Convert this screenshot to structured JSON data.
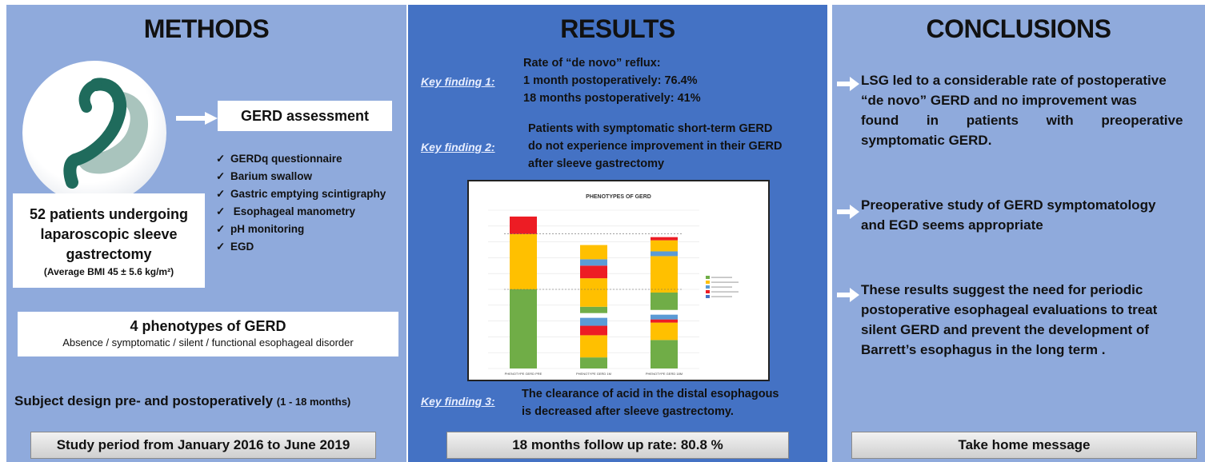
{
  "methods": {
    "title": "METHODS",
    "gerd_assessment": "GERD assessment",
    "checklist": [
      "GERDq questionnaire",
      "Barium swallow",
      "Gastric emptying scintigraphy",
      " Esophageal manometry",
      "pH monitoring",
      "EGD"
    ],
    "check_glyph": "✓",
    "patients_line1": "52 patients undergoing",
    "patients_line2": "laparoscopic sleeve",
    "patients_line3": "gastrectomy",
    "bmi_text": "(Average BMI 45 ± 5.6 kg/m²)",
    "phenotypes_title": "4 phenotypes of GERD",
    "phenotypes_sub": "Absence / symptomatic / silent / functional esophageal disorder",
    "design_main": "Subject design pre- and postoperatively ",
    "design_range": "(1 - 18 months)",
    "study_period": "Study period from January 2016 to June 2019",
    "colors": {
      "panel": "#8faadc",
      "logo_dark": "#1f6b5c",
      "logo_light": "#a9c4bd"
    }
  },
  "results": {
    "title": "RESULTS",
    "key_findings": [
      {
        "label": "Key finding 1:",
        "lines": [
          "Rate of “de novo” reflux:",
          "1 month postoperatively: 76.4%",
          "18 months postoperatively: 41%"
        ]
      },
      {
        "label": "Key finding 2:",
        "lines": [
          "Patients with symptomatic short-term GERD",
          "do not experience improvement in their GERD",
          "after sleeve gastrectomy"
        ]
      },
      {
        "label": "Key finding 3:",
        "lines": [
          "The clearance of acid in the distal esophagous",
          "is decreased after sleeve gastrectomy."
        ]
      }
    ],
    "follow_up": "18 months follow up rate: 80.8 %",
    "colors": {
      "panel": "#4472c4"
    }
  },
  "conclusions": {
    "title": "CONCLUSIONS",
    "items": [
      [
        "LSG led to a considerable rate of postoperative",
        "“de novo” GERD and no improvement was",
        "found in patients with preoperative",
        "symptomatic GERD."
      ],
      [
        "Preoperative study of GERD symptomatology",
        "and EGD seems appropriate"
      ],
      [
        "These results suggest the need for periodic",
        "postoperative esophageal evaluations to treat",
        "silent GERD and prevent the development of",
        "Barrett’s esophagus in the long term ."
      ]
    ],
    "take_home": "Take home message"
  },
  "chart_data": {
    "type": "bar",
    "stacked": true,
    "title": "PHENOTYPES OF GERD",
    "categories": [
      "PHENOTYPE GERD PRE",
      "PHENOTYPE GERD 1M",
      "PHENOTYPE GERD 18M"
    ],
    "groups": [
      {
        "category": "PHENOTYPE GERD PRE",
        "bars": [
          {
            "segments": [
              [
                "#70ad47",
                100
              ],
              [
                "#ffc000",
                70
              ],
              [
                "#ed1c24",
                22
              ]
            ]
          }
        ]
      },
      {
        "category": "PHENOTYPE GERD 1M",
        "bars": [
          {
            "segments": [
              [
                "#70ad47",
                14
              ],
              [
                "#ffc000",
                28
              ],
              [
                "#ed1c24",
                12
              ],
              [
                "#5b9bd5",
                10
              ]
            ]
          },
          {
            "segments": [
              [
                "#70ad47",
                8
              ],
              [
                "#ffc000",
                36
              ],
              [
                "#ed1c24",
                16
              ],
              [
                "#5b9bd5",
                8
              ],
              [
                "#ffc000",
                18
              ]
            ]
          }
        ]
      },
      {
        "category": "PHENOTYPE GERD 18M",
        "bars": [
          {
            "segments": [
              [
                "#70ad47",
                36
              ],
              [
                "#ffc000",
                22
              ],
              [
                "#ed1c24",
                4
              ],
              [
                "#5b9bd5",
                6
              ]
            ]
          },
          {
            "segments": [
              [
                "#70ad47",
                22
              ],
              [
                "#ffc000",
                46
              ],
              [
                "#5b9bd5",
                6
              ],
              [
                "#ffc000",
                14
              ],
              [
                "#ed1c24",
                4
              ]
            ]
          }
        ]
      }
    ],
    "legend_colors": [
      "#70ad47",
      "#ffc000",
      "#5b9bd5",
      "#ed1c24",
      "#4472c4"
    ],
    "legend_position": "right",
    "ylim": [
      0,
      200
    ],
    "grid": true
  }
}
